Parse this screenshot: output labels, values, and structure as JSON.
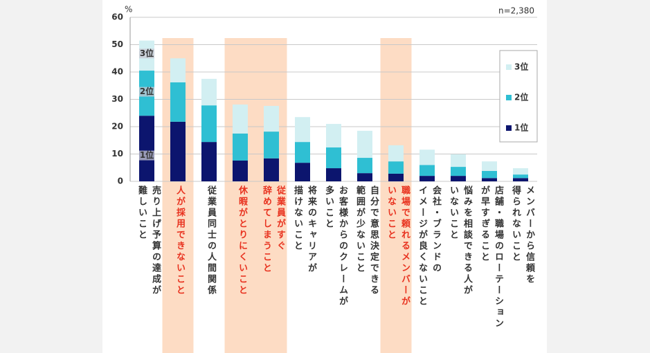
{
  "chart_data": {
    "type": "stacked_bar",
    "y_unit": "%",
    "note": "n=2,380",
    "categories": [
      "売り上げ予算の達成が\n難しいこと",
      "人が採用できないこと",
      "従業員同士の人間関係",
      "休暇がとりにくいこと",
      "従業員がすぐ\n辞めてしまうこと",
      "将来のキャリアが\n描けないこと",
      "お客様からのクレームが\n多いこと",
      "自分で意思決定できる\n範囲が少ないこと",
      "職場で頼れるメンバーが\nいないこと",
      "会社・ブランドの\nイメージが良くないこと",
      "悩みを相談できる人が\nいないこと",
      "店舗・職場のローテーション\nが早すぎること",
      "メンバーから信頼を\n得られないこと"
    ],
    "highlighted": [
      1,
      3,
      4,
      8
    ],
    "series": [
      {
        "name": "1位",
        "color": "#0c156e",
        "values": [
          24,
          21.8,
          14.4,
          7.6,
          8.4,
          6.8,
          4.8,
          3,
          2.8,
          2,
          2,
          1.2,
          1.2
        ]
      },
      {
        "name": "2位",
        "color": "#2fbfd3",
        "values": [
          16.5,
          14.4,
          13.4,
          9.9,
          9.8,
          7.6,
          7.6,
          5.6,
          4.5,
          4,
          3.3,
          2.6,
          1.3
        ]
      },
      {
        "name": "3位",
        "color": "#d2eff2",
        "values": [
          11,
          8.8,
          9.7,
          10.6,
          9.4,
          9.1,
          8.6,
          9.9,
          5.9,
          5.6,
          4.6,
          3.5,
          2.3
        ]
      }
    ],
    "ylim": [
      0,
      60
    ],
    "yticks": [
      0,
      10,
      20,
      30,
      40,
      50,
      60
    ],
    "grid": true
  }
}
